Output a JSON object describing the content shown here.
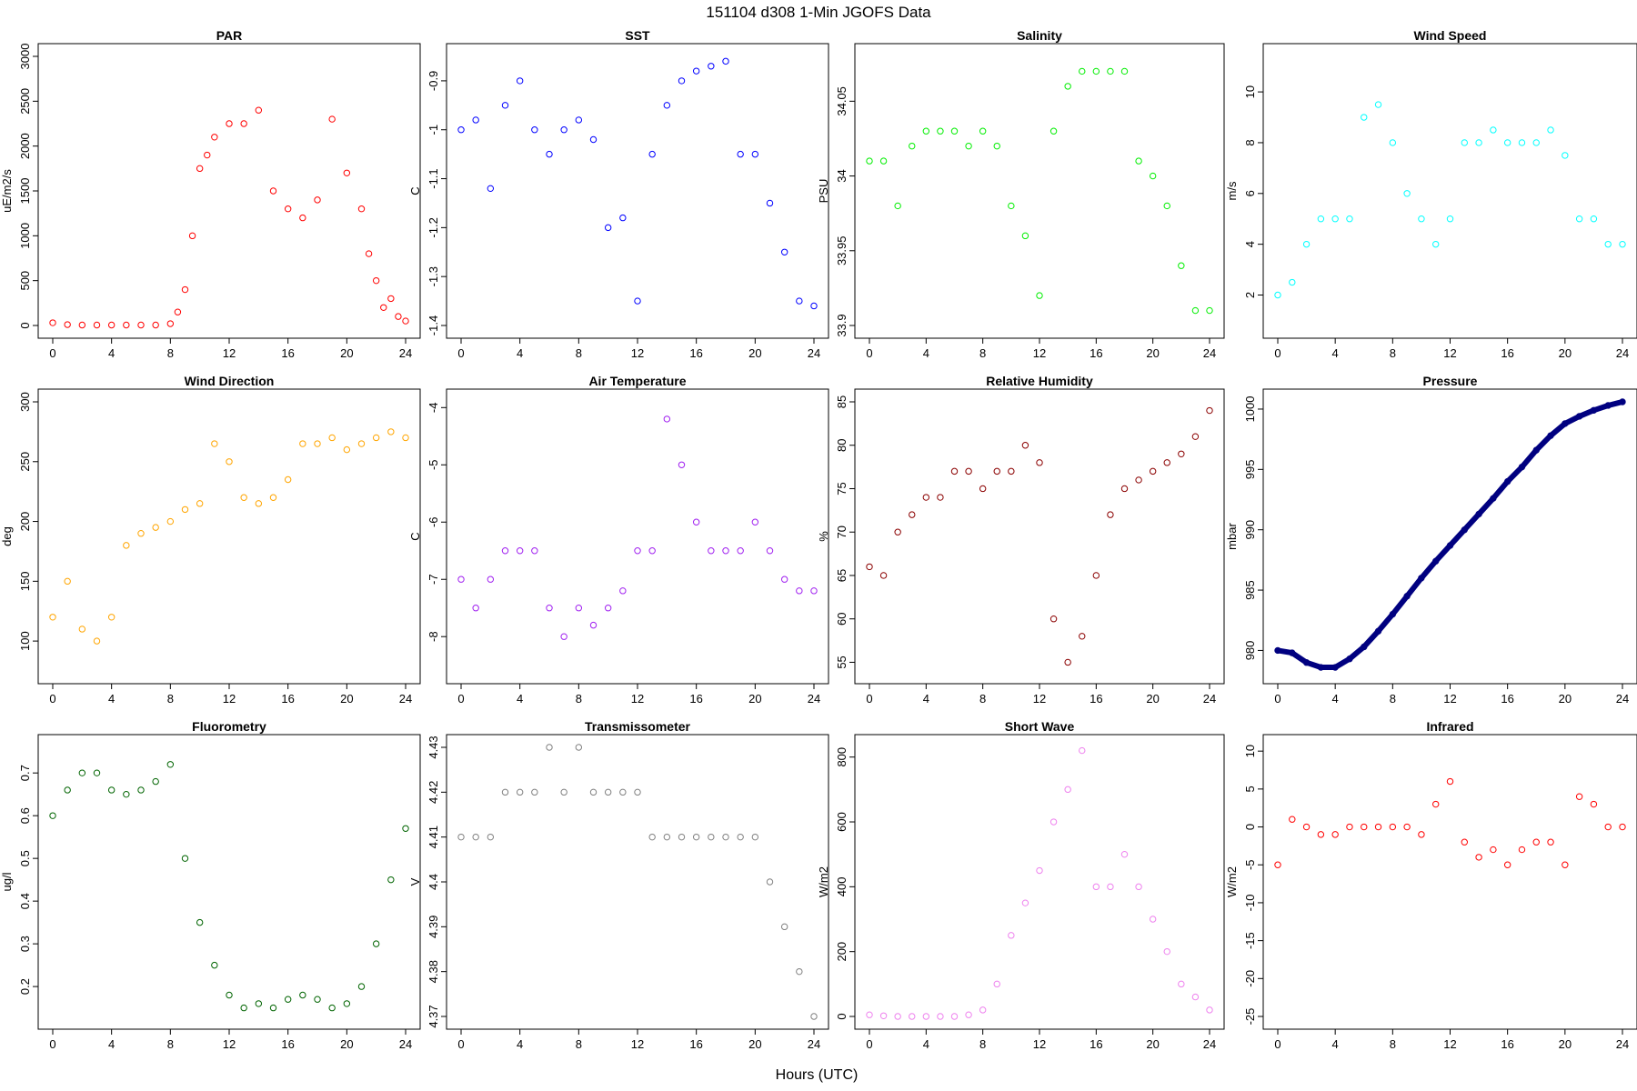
{
  "figure": {
    "title": "151104   d308   1-Min  JGOFS Data",
    "xlabel": "Hours (UTC)"
  },
  "chart_data": [
    {
      "type": "scatter",
      "title": "PAR",
      "ylabel": "uE/m2/s",
      "color": "#ff0000",
      "xlim": [
        0,
        24
      ],
      "ylim": [
        0,
        3000
      ],
      "xticks": [
        0,
        4,
        8,
        12,
        16,
        20,
        24
      ],
      "yticks": [
        0,
        500,
        1000,
        1500,
        2000,
        2500,
        3000
      ],
      "x": [
        0,
        1,
        2,
        3,
        4,
        5,
        6,
        7,
        8,
        8.5,
        9,
        9.5,
        10,
        10.5,
        11,
        12,
        13,
        14,
        15,
        16,
        17,
        18,
        19,
        20,
        21,
        21.5,
        22,
        22.5,
        23,
        23.5,
        24
      ],
      "y": [
        30,
        10,
        5,
        5,
        5,
        5,
        5,
        5,
        20,
        150,
        400,
        1000,
        1750,
        1900,
        2100,
        2250,
        2250,
        2400,
        1500,
        1300,
        1200,
        1400,
        2300,
        1700,
        1300,
        800,
        500,
        200,
        300,
        100,
        50
      ]
    },
    {
      "type": "scatter",
      "title": "SST",
      "ylabel": "C",
      "color": "#0000ff",
      "xlim": [
        0,
        24
      ],
      "ylim": [
        -1.4,
        -0.85
      ],
      "xticks": [
        0,
        4,
        8,
        12,
        16,
        20,
        24
      ],
      "yticks": [
        -1.4,
        -1.3,
        -1.2,
        -1.1,
        -1.0,
        -0.9
      ],
      "x": [
        0,
        1,
        2,
        3,
        4,
        5,
        6,
        7,
        8,
        9,
        10,
        11,
        12,
        13,
        14,
        15,
        16,
        17,
        18,
        19,
        20,
        21,
        22,
        23,
        24
      ],
      "y": [
        -1.0,
        -0.98,
        -1.12,
        -0.95,
        -0.9,
        -1.0,
        -1.05,
        -1.0,
        -0.98,
        -1.02,
        -1.2,
        -1.18,
        -1.35,
        -1.05,
        -0.95,
        -0.9,
        -0.88,
        -0.87,
        -0.86,
        -1.05,
        -1.05,
        -1.15,
        -1.25,
        -1.35,
        -1.36
      ]
    },
    {
      "type": "scatter",
      "title": "Salinity",
      "ylabel": "PSU",
      "color": "#00ee00",
      "xlim": [
        0,
        24
      ],
      "ylim": [
        33.9,
        34.08
      ],
      "xticks": [
        0,
        4,
        8,
        12,
        16,
        20,
        24
      ],
      "yticks": [
        33.9,
        33.95,
        34.0,
        34.05
      ],
      "x": [
        0,
        1,
        2,
        3,
        4,
        5,
        6,
        7,
        8,
        9,
        10,
        11,
        12,
        13,
        14,
        15,
        16,
        17,
        18,
        19,
        20,
        21,
        22,
        23,
        24
      ],
      "y": [
        34.01,
        34.01,
        33.98,
        34.02,
        34.03,
        34.03,
        34.03,
        34.02,
        34.03,
        34.02,
        33.98,
        33.96,
        33.92,
        34.03,
        34.06,
        34.07,
        34.07,
        34.07,
        34.07,
        34.01,
        34.0,
        33.98,
        33.94,
        33.91,
        33.91
      ]
    },
    {
      "type": "scatter",
      "title": "Wind Speed",
      "ylabel": "m/s",
      "color": "#00ffff",
      "xlim": [
        0,
        24
      ],
      "ylim": [
        0.8,
        11.4
      ],
      "xticks": [
        0,
        4,
        8,
        12,
        16,
        20,
        24
      ],
      "yticks": [
        2,
        4,
        6,
        8,
        10
      ],
      "x": [
        0,
        1,
        2,
        3,
        4,
        5,
        6,
        7,
        8,
        9,
        10,
        11,
        12,
        13,
        14,
        15,
        16,
        17,
        18,
        19,
        20,
        21,
        22,
        23,
        24
      ],
      "y": [
        2,
        2.5,
        4,
        5,
        5,
        5,
        9,
        9.5,
        8,
        6,
        5,
        4,
        5,
        8,
        8,
        8.5,
        8,
        8,
        8,
        8.5,
        7.5,
        5,
        5,
        4,
        4
      ]
    },
    {
      "type": "scatter",
      "title": "Wind Direction",
      "ylabel": "deg",
      "color": "#ffa500",
      "xlim": [
        0,
        24
      ],
      "ylim": [
        75,
        300
      ],
      "xticks": [
        0,
        4,
        8,
        12,
        16,
        20,
        24
      ],
      "yticks": [
        100,
        150,
        200,
        250,
        300
      ],
      "x": [
        0,
        1,
        2,
        3,
        4,
        5,
        6,
        7,
        8,
        9,
        10,
        11,
        12,
        13,
        14,
        15,
        16,
        17,
        18,
        19,
        20,
        21,
        22,
        23,
        24
      ],
      "y": [
        120,
        150,
        110,
        100,
        120,
        180,
        190,
        195,
        200,
        210,
        215,
        265,
        250,
        220,
        215,
        220,
        235,
        265,
        265,
        270,
        260,
        265,
        270,
        275,
        270
      ]
    },
    {
      "type": "scatter",
      "title": "Air Temperature",
      "ylabel": "C",
      "color": "#a020f0",
      "xlim": [
        0,
        24
      ],
      "ylim": [
        -8.6,
        -3.9
      ],
      "xticks": [
        0,
        4,
        8,
        12,
        16,
        20,
        24
      ],
      "yticks": [
        -8,
        -7,
        -6,
        -5,
        -4
      ],
      "x": [
        0,
        1,
        2,
        3,
        4,
        5,
        6,
        7,
        8,
        9,
        10,
        11,
        12,
        13,
        14,
        15,
        16,
        17,
        18,
        19,
        20,
        21,
        22,
        23,
        24
      ],
      "y": [
        -7,
        -7.5,
        -7,
        -6.5,
        -6.5,
        -6.5,
        -7.5,
        -8,
        -7.5,
        -7.8,
        -7.5,
        -7.2,
        -6.5,
        -6.5,
        -4.2,
        -5,
        -6,
        -6.5,
        -6.5,
        -6.5,
        -6,
        -6.5,
        -7,
        -7.2,
        -7.2
      ]
    },
    {
      "type": "scatter",
      "title": "Relative Humidity",
      "ylabel": "%",
      "color": "#8b0000",
      "xlim": [
        0,
        24
      ],
      "ylim": [
        54,
        85
      ],
      "xticks": [
        0,
        4,
        8,
        12,
        16,
        20,
        24
      ],
      "yticks": [
        55,
        60,
        65,
        70,
        75,
        80,
        85
      ],
      "x": [
        0,
        1,
        2,
        3,
        4,
        5,
        6,
        7,
        8,
        9,
        10,
        11,
        12,
        13,
        14,
        15,
        16,
        17,
        18,
        19,
        20,
        21,
        22,
        23,
        24
      ],
      "y": [
        66,
        65,
        70,
        72,
        74,
        74,
        77,
        77,
        75,
        77,
        77,
        80,
        78,
        60,
        55,
        58,
        65,
        72,
        75,
        76,
        77,
        78,
        79,
        81,
        84
      ]
    },
    {
      "type": "line",
      "title": "Pressure",
      "ylabel": "mbar",
      "color": "#000080",
      "xlim": [
        0,
        24
      ],
      "ylim": [
        978.3,
        1000.6
      ],
      "xticks": [
        0,
        4,
        8,
        12,
        16,
        20,
        24
      ],
      "yticks": [
        980,
        985,
        990,
        995,
        1000
      ],
      "x": [
        0,
        1,
        2,
        3,
        4,
        5,
        6,
        7,
        8,
        9,
        10,
        11,
        12,
        13,
        14,
        15,
        16,
        17,
        18,
        19,
        20,
        21,
        22,
        23,
        24
      ],
      "y": [
        980,
        979.8,
        979,
        978.6,
        978.6,
        979.3,
        980.3,
        981.6,
        983,
        984.5,
        986,
        987.4,
        988.7,
        990,
        991.3,
        992.6,
        994,
        995.2,
        996.6,
        997.8,
        998.8,
        999.4,
        999.9,
        1000.3,
        1000.6
      ]
    },
    {
      "type": "scatter",
      "title": "Fluorometry",
      "ylabel": "ug/l",
      "color": "#006400",
      "xlim": [
        0,
        24
      ],
      "ylim": [
        0.13,
        0.76
      ],
      "xticks": [
        0,
        4,
        8,
        12,
        16,
        20,
        24
      ],
      "yticks": [
        0.2,
        0.3,
        0.4,
        0.5,
        0.6,
        0.7
      ],
      "x": [
        0,
        1,
        2,
        3,
        4,
        5,
        6,
        7,
        8,
        9,
        10,
        11,
        12,
        13,
        14,
        15,
        16,
        17,
        18,
        19,
        20,
        21,
        22,
        23,
        24
      ],
      "y": [
        0.6,
        0.66,
        0.7,
        0.7,
        0.66,
        0.65,
        0.66,
        0.68,
        0.72,
        0.5,
        0.35,
        0.25,
        0.18,
        0.15,
        0.16,
        0.15,
        0.17,
        0.18,
        0.17,
        0.15,
        0.16,
        0.2,
        0.3,
        0.45,
        0.57
      ]
    },
    {
      "type": "scatter",
      "title": "Transmissometer",
      "ylabel": "V",
      "color": "#808080",
      "xlim": [
        0,
        24
      ],
      "ylim": [
        4.37,
        4.43
      ],
      "xticks": [
        0,
        4,
        8,
        12,
        16,
        20,
        24
      ],
      "yticks": [
        4.37,
        4.38,
        4.39,
        4.4,
        4.41,
        4.42,
        4.43
      ],
      "x": [
        0,
        1,
        2,
        3,
        4,
        5,
        6,
        7,
        8,
        9,
        10,
        11,
        12,
        13,
        14,
        15,
        16,
        17,
        18,
        19,
        20,
        21,
        22,
        23,
        24
      ],
      "y": [
        4.41,
        4.41,
        4.41,
        4.42,
        4.42,
        4.42,
        4.43,
        4.42,
        4.43,
        4.42,
        4.42,
        4.42,
        4.42,
        4.41,
        4.41,
        4.41,
        4.41,
        4.41,
        4.41,
        4.41,
        4.41,
        4.4,
        4.39,
        4.38,
        4.37
      ]
    },
    {
      "type": "scatter",
      "title": "Short Wave",
      "ylabel": "W/m2",
      "color": "#ee82ee",
      "xlim": [
        0,
        24
      ],
      "ylim": [
        0,
        830
      ],
      "xticks": [
        0,
        4,
        8,
        12,
        16,
        20,
        24
      ],
      "yticks": [
        0,
        200,
        400,
        600,
        800
      ],
      "x": [
        0,
        1,
        2,
        3,
        4,
        5,
        6,
        7,
        8,
        9,
        10,
        11,
        12,
        13,
        14,
        15,
        16,
        17,
        18,
        19,
        20,
        21,
        22,
        23,
        24
      ],
      "y": [
        5,
        2,
        0,
        0,
        0,
        0,
        0,
        5,
        20,
        100,
        250,
        350,
        450,
        600,
        700,
        820,
        400,
        400,
        500,
        400,
        300,
        200,
        100,
        60,
        20
      ]
    },
    {
      "type": "scatter",
      "title": "Infrared",
      "ylabel": "W/m2",
      "color": "#ff0000",
      "xlim": [
        0,
        24
      ],
      "ylim": [
        -25,
        10.5
      ],
      "xticks": [
        0,
        4,
        8,
        12,
        16,
        20,
        24
      ],
      "yticks": [
        -25,
        -20,
        -15,
        -10,
        -5,
        0,
        5,
        10
      ],
      "x": [
        0,
        1,
        2,
        3,
        4,
        5,
        6,
        7,
        8,
        9,
        10,
        11,
        12,
        13,
        14,
        15,
        16,
        17,
        18,
        19,
        20,
        21,
        22,
        23,
        24
      ],
      "y": [
        -5,
        1,
        0,
        -1,
        -1,
        0,
        0,
        0,
        0,
        0,
        -1,
        3,
        6,
        -2,
        -4,
        -3,
        -5,
        -3,
        -2,
        -2,
        -5,
        4,
        3,
        0,
        0
      ]
    }
  ]
}
